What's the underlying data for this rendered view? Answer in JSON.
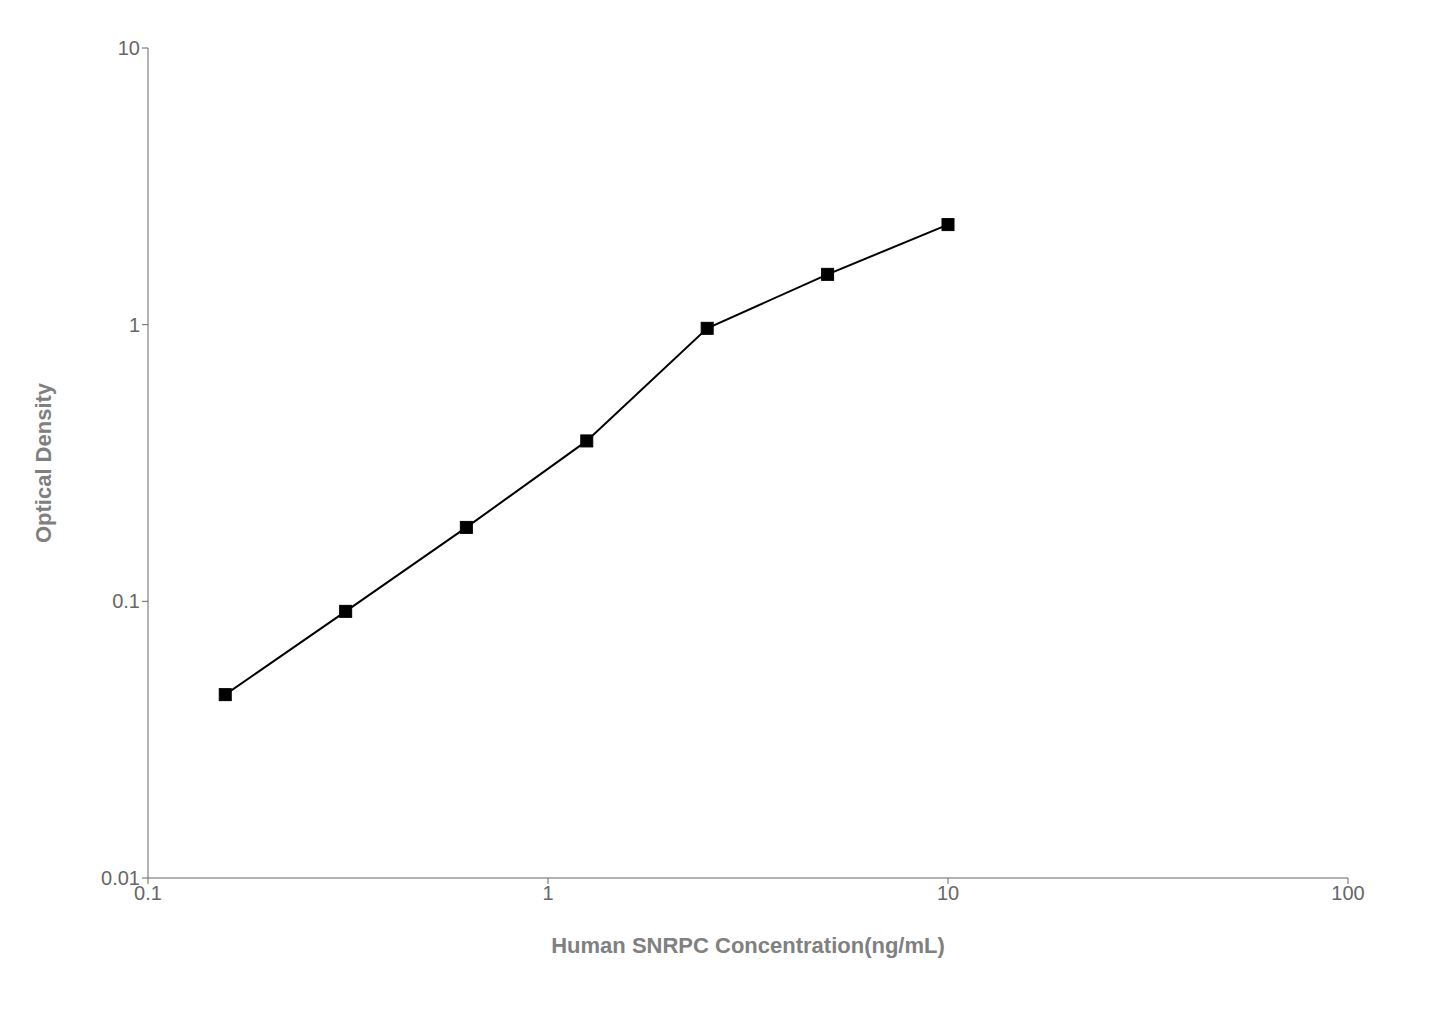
{
  "chart_data": {
    "type": "line",
    "x": [
      0.156,
      0.312,
      0.625,
      1.25,
      2.5,
      5.0,
      10.0
    ],
    "values": [
      0.046,
      0.092,
      0.185,
      0.38,
      0.97,
      1.52,
      2.3
    ],
    "xlabel": "Human SNRPC Concentration(ng/mL)",
    "ylabel": "Optical Density",
    "xlim": [
      0.1,
      100
    ],
    "ylim": [
      0.01,
      10
    ],
    "xticks": [
      0.1,
      1,
      10,
      100
    ],
    "yticks": [
      0.01,
      0.1,
      1,
      10
    ],
    "log": true,
    "grid": false,
    "color": "#000000",
    "marker": "square"
  }
}
